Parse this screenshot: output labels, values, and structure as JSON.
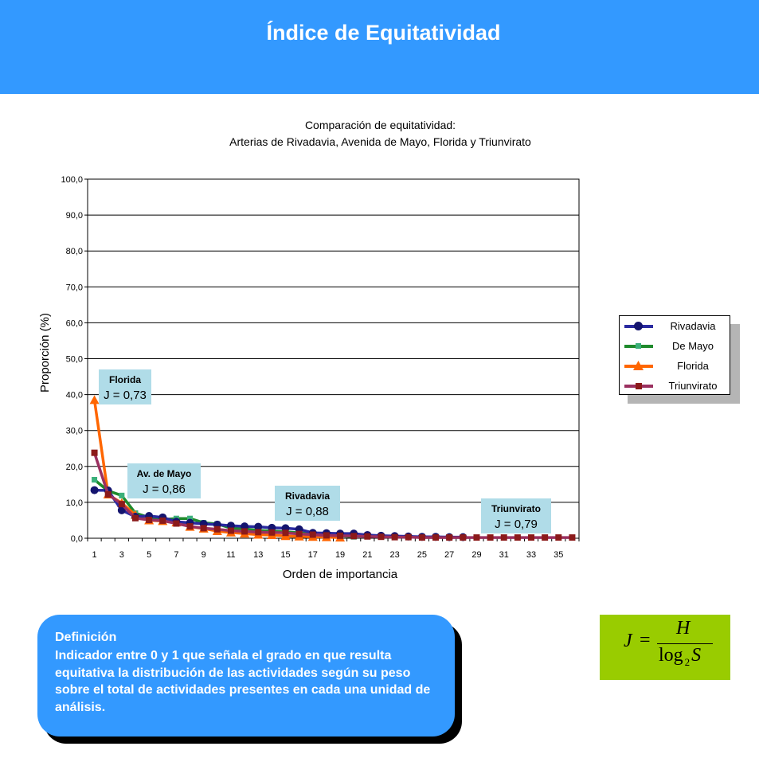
{
  "header": {
    "title": "Índice de Equitatividad"
  },
  "chart_data": {
    "type": "line",
    "title_lines": [
      "Comparación de equitatividad:",
      "Arterias de Rivadavia, Avenida de Mayo, Florida y Triunvirato"
    ],
    "xlabel": "Orden de importancia",
    "ylabel": "Proporción (%)",
    "ylim": [
      0,
      100
    ],
    "xlim": [
      1,
      36
    ],
    "yticks": [
      "0,0",
      "10,0",
      "20,0",
      "30,0",
      "40,0",
      "50,0",
      "60,0",
      "70,0",
      "80,0",
      "90,0",
      "100,0"
    ],
    "xticks": [
      "1",
      "3",
      "5",
      "7",
      "9",
      "11",
      "13",
      "15",
      "17",
      "19",
      "21",
      "23",
      "25",
      "27",
      "29",
      "31",
      "33",
      "35"
    ],
    "grid": "horizontal",
    "legend_position": "right",
    "series": [
      {
        "name": "Rivadavia",
        "color": "#2a2aa0",
        "marker": "circle",
        "values": [
          13.4,
          13.3,
          7.8,
          6.0,
          6.2,
          5.8,
          4.6,
          4.3,
          4.0,
          3.8,
          3.5,
          3.3,
          3.2,
          2.9,
          2.8,
          2.5,
          1.5,
          1.4,
          1.3,
          1.3,
          0.9,
          0.7,
          0.6,
          0.5,
          0.4,
          0.4,
          0.3,
          0.3
        ]
      },
      {
        "name": "De Mayo",
        "color": "#1f8a2c",
        "marker": "square",
        "values": [
          16.3,
          13.2,
          11.9,
          7.0,
          5.8,
          5.2,
          5.5,
          5.5,
          4.3,
          4.0,
          2.8,
          2.6,
          2.2,
          2.0,
          1.8,
          1.5,
          1.3,
          1.1,
          0.7,
          0.4
        ]
      },
      {
        "name": "Florida",
        "color": "#ff6600",
        "marker": "triangle",
        "values": [
          38.5,
          12.2,
          9.8,
          6.5,
          5.0,
          4.8,
          4.4,
          3.2,
          2.7,
          2.0,
          1.6,
          1.3,
          1.0,
          0.9,
          0.6,
          0.5,
          0.4,
          0.3,
          0.2
        ]
      },
      {
        "name": "Triunvirato",
        "color": "#9b3060",
        "marker": "square-dark",
        "values": [
          23.8,
          12.2,
          9.5,
          5.6,
          5.1,
          4.9,
          4.1,
          3.3,
          2.8,
          2.5,
          2.1,
          1.9,
          1.7,
          1.6,
          1.5,
          1.2,
          1.0,
          0.8,
          0.7,
          0.6,
          0.5,
          0.4,
          0.3,
          0.3,
          0.2,
          0.2,
          0.2,
          0.2,
          0.2,
          0.2,
          0.2,
          0.2,
          0.2,
          0.2,
          0.2,
          0.2
        ]
      }
    ],
    "annotations": [
      {
        "name": "Florida",
        "text": "J = 0,73"
      },
      {
        "name": "Av. de Mayo",
        "text": "J = 0,86"
      },
      {
        "name": "Rivadavia",
        "text": "J = 0,88"
      },
      {
        "name": "Triunvirato",
        "text": "J = 0,79"
      }
    ]
  },
  "definition": {
    "title": "Definición",
    "text": "Indicador entre 0 y 1 que señala el grado en que resulta equitativa la distribución de las actividades según su peso sobre el total de actividades presentes en cada una unidad de análisis."
  },
  "formula": {
    "lhs": "J",
    "equals": "=",
    "numerator": "H",
    "log": "log",
    "base": "2",
    "var": "S"
  },
  "colors": {
    "header_bg": "#3399ff",
    "annotation_bg": "#b0dce8",
    "formula_bg": "#99cc00"
  }
}
